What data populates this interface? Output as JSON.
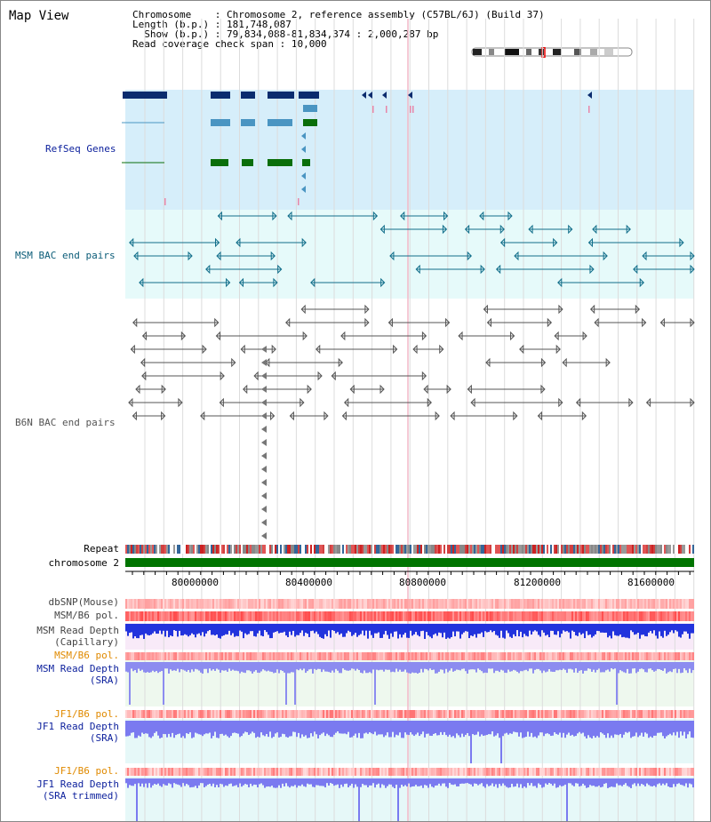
{
  "map_title": "Map View",
  "info": {
    "chromosome_label": "Chromosome",
    "chromosome_value": "Chromosome 2, reference assembly (C57BL/6J) (Build 37)",
    "length_label": "Length (b.p.)",
    "length_value": "181,748,087",
    "show_label": "Show (b.p.)",
    "show_value": "79,834,088-81,834,374 : 2,000,287 bp",
    "coverage_label": "Read coverage check span",
    "coverage_value": "10,000"
  },
  "tracks": {
    "refseq_label": "RefSeq Genes",
    "msm_bac_label": "MSM BAC end pairs",
    "b6n_bac_label": "B6N BAC end pairs",
    "repeat_label": "Repeat",
    "chromosome_label": "chromosome 2",
    "dbsnp_label": "dbSNP(Mouse)",
    "msm_b6_pol_label": "MSM/B6 pol.",
    "msm_read_depth_cap_label_1": "MSM Read Depth",
    "msm_read_depth_cap_label_2": "(Capillary)",
    "msm_b6_pol_sra_label": "MSM/B6 pol.",
    "msm_read_depth_sra_label_1": "MSM Read Depth",
    "msm_read_depth_sra_label_2": "(SRA)",
    "jf1_b6_pol_label": "JF1/B6 pol.",
    "jf1_read_depth_label_1": "JF1 Read Depth",
    "jf1_read_depth_label_2": "(SRA)",
    "jf1_b6_pol_trim_label": "JF1/B6 pol.",
    "jf1_read_depth_trim_label_1": "JF1 Read Depth",
    "jf1_read_depth_trim_label_2": "(SRA trimmed)"
  },
  "axis_ticks": [
    "80000000",
    "80400000",
    "80800000",
    "81200000",
    "81600000"
  ],
  "colors": {
    "refseq_bg": "#d6eefa",
    "bac_bg": "#e6fafa",
    "gene_dark": "#0b2c6e",
    "gene_mid": "#4a95c2",
    "gene_green": "#0a6e0a",
    "msm_bac": "#116e8a",
    "b6n_bac": "#555555",
    "label_blue": "#0b1f9c",
    "label_teal": "#0b5c78",
    "label_orange": "#e08a00",
    "chromosome_bar": "#007400"
  }
}
